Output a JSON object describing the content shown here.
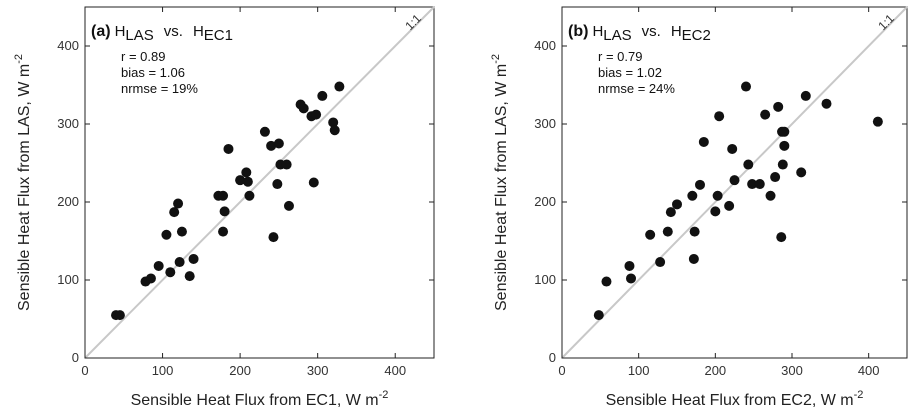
{
  "chart_data": [
    {
      "type": "scatter",
      "panel_label": "(a)",
      "title_main_1": "H",
      "title_sub_1": "LAS",
      "title_vs": "vs.",
      "title_main_2": "H",
      "title_sub_2": "EC1",
      "stats": [
        "r = 0.89",
        "bias = 1.06",
        "nrmse = 19%"
      ],
      "xlabel": "Sensible Heat Flux from EC1, W m",
      "ylabel": "Sensible Heat Flux from LAS, W m",
      "unit_exp": "-2",
      "one_to_one_label": "1:1",
      "xlim": [
        0,
        450
      ],
      "ylim": [
        0,
        450
      ],
      "xticks": [
        0,
        100,
        200,
        300,
        400
      ],
      "yticks": [
        0,
        100,
        200,
        300,
        400
      ],
      "points": [
        [
          40,
          55
        ],
        [
          45,
          55
        ],
        [
          78,
          98
        ],
        [
          85,
          102
        ],
        [
          95,
          118
        ],
        [
          105,
          158
        ],
        [
          110,
          110
        ],
        [
          115,
          187
        ],
        [
          120,
          198
        ],
        [
          122,
          123
        ],
        [
          125,
          162
        ],
        [
          135,
          105
        ],
        [
          140,
          127
        ],
        [
          172,
          208
        ],
        [
          178,
          208
        ],
        [
          178,
          162
        ],
        [
          180,
          188
        ],
        [
          185,
          268
        ],
        [
          200,
          228
        ],
        [
          208,
          238
        ],
        [
          210,
          226
        ],
        [
          212,
          208
        ],
        [
          232,
          290
        ],
        [
          240,
          272
        ],
        [
          243,
          155
        ],
        [
          248,
          223
        ],
        [
          250,
          275
        ],
        [
          252,
          248
        ],
        [
          260,
          248
        ],
        [
          263,
          195
        ],
        [
          278,
          325
        ],
        [
          282,
          320
        ],
        [
          292,
          310
        ],
        [
          295,
          225
        ],
        [
          298,
          312
        ],
        [
          306,
          336
        ],
        [
          320,
          302
        ],
        [
          322,
          292
        ],
        [
          328,
          348
        ]
      ]
    },
    {
      "type": "scatter",
      "panel_label": "(b)",
      "title_main_1": "H",
      "title_sub_1": "LAS",
      "title_vs": "vs.",
      "title_main_2": "H",
      "title_sub_2": "EC2",
      "stats": [
        "r = 0.79",
        "bias = 1.02",
        "nrmse = 24%"
      ],
      "xlabel": "Sensible Heat Flux from EC2, W m",
      "ylabel": "Sensible Heat Flux from LAS, W m",
      "unit_exp": "-2",
      "one_to_one_label": "1:1",
      "xlim": [
        0,
        450
      ],
      "ylim": [
        0,
        450
      ],
      "xticks": [
        0,
        100,
        200,
        300,
        400
      ],
      "yticks": [
        0,
        100,
        200,
        300,
        400
      ],
      "points": [
        [
          48,
          55
        ],
        [
          58,
          98
        ],
        [
          88,
          118
        ],
        [
          90,
          102
        ],
        [
          115,
          158
        ],
        [
          128,
          123
        ],
        [
          138,
          162
        ],
        [
          142,
          187
        ],
        [
          150,
          197
        ],
        [
          170,
          208
        ],
        [
          172,
          127
        ],
        [
          173,
          162
        ],
        [
          180,
          222
        ],
        [
          185,
          277
        ],
        [
          200,
          188
        ],
        [
          203,
          208
        ],
        [
          205,
          310
        ],
        [
          218,
          195
        ],
        [
          222,
          268
        ],
        [
          225,
          228
        ],
        [
          240,
          348
        ],
        [
          243,
          248
        ],
        [
          248,
          223
        ],
        [
          258,
          223
        ],
        [
          265,
          312
        ],
        [
          272,
          208
        ],
        [
          278,
          232
        ],
        [
          282,
          322
        ],
        [
          286,
          155
        ],
        [
          287,
          290
        ],
        [
          288,
          248
        ],
        [
          290,
          290
        ],
        [
          290,
          272
        ],
        [
          312,
          238
        ],
        [
          318,
          336
        ],
        [
          345,
          326
        ],
        [
          412,
          303
        ]
      ]
    }
  ]
}
